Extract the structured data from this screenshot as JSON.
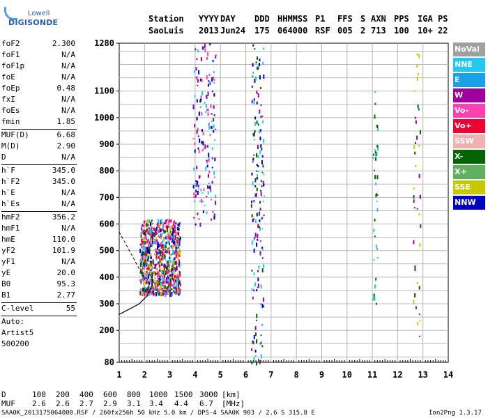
{
  "logo": {
    "line1": "Lowell",
    "line2": "DIGISONDE"
  },
  "header": {
    "labels": [
      "Station",
      "YYYY",
      "DAY",
      "DDD",
      "HHMMSS",
      "P1",
      "FFS",
      "S",
      "AXN",
      "PPS",
      "IGA",
      "PS"
    ],
    "values": [
      "SaoLuis",
      "2013",
      "Jun24",
      "175",
      "064000",
      "RSF",
      "005",
      "2",
      "713",
      "100",
      "10+",
      "22"
    ]
  },
  "params": {
    "group1": [
      {
        "name": "foF2",
        "value": "2.300"
      },
      {
        "name": "foF1",
        "value": "N/A"
      },
      {
        "name": "foF1p",
        "value": "N/A"
      },
      {
        "name": "foE",
        "value": "N/A"
      },
      {
        "name": "foEp",
        "value": "0.48"
      },
      {
        "name": "fxI",
        "value": "N/A"
      },
      {
        "name": "foEs",
        "value": "N/A"
      },
      {
        "name": "fmin",
        "value": "1.85"
      }
    ],
    "group2": [
      {
        "name": "MUF(D)",
        "value": "6.68"
      },
      {
        "name": "M(D)",
        "value": "2.90"
      },
      {
        "name": "D",
        "value": "N/A"
      }
    ],
    "group3": [
      {
        "name": "h`F",
        "value": "345.0"
      },
      {
        "name": "h`F2",
        "value": "345.0"
      },
      {
        "name": "h`E",
        "value": "N/A"
      },
      {
        "name": "h`Es",
        "value": "N/A"
      }
    ],
    "group4": [
      {
        "name": "hmF2",
        "value": "356.2"
      },
      {
        "name": "hmF1",
        "value": "N/A"
      },
      {
        "name": "hmE",
        "value": "110.0"
      },
      {
        "name": "yF2",
        "value": "101.9"
      },
      {
        "name": "yF1",
        "value": "N/A"
      },
      {
        "name": "yE",
        "value": "20.0"
      },
      {
        "name": "B0",
        "value": "95.3"
      },
      {
        "name": "B1",
        "value": "2.77"
      }
    ],
    "clevel": {
      "name": "C-level",
      "value": "55"
    },
    "auto": [
      "Auto:",
      "Artist5",
      "500200"
    ]
  },
  "legend": [
    {
      "label": "NoVal",
      "color": "#a0a0a0"
    },
    {
      "label": "NNE",
      "color": "#22c8f0"
    },
    {
      "label": "E",
      "color": "#1aa0e8"
    },
    {
      "label": "W",
      "color": "#a000a0"
    },
    {
      "label": "Vo-",
      "color": "#ff40b0"
    },
    {
      "label": "Vo+",
      "color": "#f00030"
    },
    {
      "label": "SSW",
      "color": "#f0b0b0"
    },
    {
      "label": "X-",
      "color": "#006400"
    },
    {
      "label": "X+",
      "color": "#60b060"
    },
    {
      "label": "SSE",
      "color": "#c8c800"
    },
    {
      "label": "NNW",
      "color": "#0000c0"
    }
  ],
  "chart_data": {
    "type": "scatter",
    "title": "",
    "xlabel": "",
    "ylabel": "",
    "xlim": [
      1,
      14
    ],
    "ylim": [
      80,
      1280
    ],
    "x_ticks": [
      1,
      2,
      3,
      4,
      5,
      6,
      7,
      8,
      9,
      10,
      11,
      12,
      13,
      14
    ],
    "y_ticks": [
      80,
      200,
      300,
      400,
      500,
      600,
      700,
      800,
      900,
      1000,
      1100,
      1280
    ],
    "y_ticks_labels": [
      "80",
      "200",
      "300",
      "400",
      "500",
      "600",
      "700",
      "800",
      "900",
      "1000",
      "1100",
      "1280"
    ],
    "grid": true,
    "traces": [
      {
        "name": "cluster F2",
        "x_range": [
          1.8,
          3.4
        ],
        "h_range": [
          340,
          620
        ],
        "density": "high",
        "colors": [
          "#ff40b0",
          "#f00030",
          "#006400",
          "#c8c800",
          "#0000c0",
          "#a000a0",
          "#22c8f0"
        ]
      },
      {
        "name": "2-hop",
        "x_range": [
          3.9,
          4.8
        ],
        "h_range": [
          600,
          1280
        ],
        "density": "medium",
        "colors": [
          "#0000c0",
          "#a000a0",
          "#22c8f0",
          "#ff40b0"
        ]
      },
      {
        "name": "column 6.3-6.6",
        "x_range": [
          6.2,
          6.7
        ],
        "h_range": [
          80,
          1280
        ],
        "density": "medium",
        "colors": [
          "#0000c0",
          "#22c8f0",
          "#a000a0",
          "#006400"
        ]
      },
      {
        "name": "column 11",
        "x_range": [
          11.0,
          11.2
        ],
        "h_range": [
          300,
          1100
        ],
        "density": "low",
        "colors": [
          "#006400",
          "#22c8f0"
        ]
      },
      {
        "name": "column 12.8",
        "x_range": [
          12.6,
          12.9
        ],
        "h_range": [
          150,
          1280
        ],
        "density": "low",
        "colors": [
          "#c8c800",
          "#006400",
          "#a000a0"
        ]
      }
    ],
    "model_profile": {
      "name": "profile curve",
      "points": [
        [
          1.0,
          260
        ],
        [
          1.8,
          300
        ],
        [
          2.1,
          330
        ],
        [
          2.3,
          370
        ],
        [
          2.3,
          420
        ]
      ]
    },
    "model_profile_dashed": {
      "name": "profile topside",
      "points": [
        [
          1.0,
          570
        ],
        [
          1.4,
          500
        ],
        [
          1.8,
          430
        ],
        [
          2.0,
          390
        ]
      ]
    }
  },
  "muf_table": {
    "d_label": "D",
    "d_values": [
      "100",
      "200",
      "400",
      "600",
      "800",
      "1000",
      "1500",
      "3000",
      "[km]"
    ],
    "muf_label": "MUF",
    "muf_values": [
      "2.6",
      "2.6",
      "2.7",
      "2.9",
      "3.1",
      "3.4",
      "4.4",
      "6.7",
      "[MHz]"
    ]
  },
  "footer": {
    "left": "SAA0K_2013175064000.RSF / 260fx256h 50 kHz 5.0 km / DPS-4 SAA0K 903 / 2.6 S 315.8 E",
    "right": "Ion2Png 1.3.17"
  }
}
